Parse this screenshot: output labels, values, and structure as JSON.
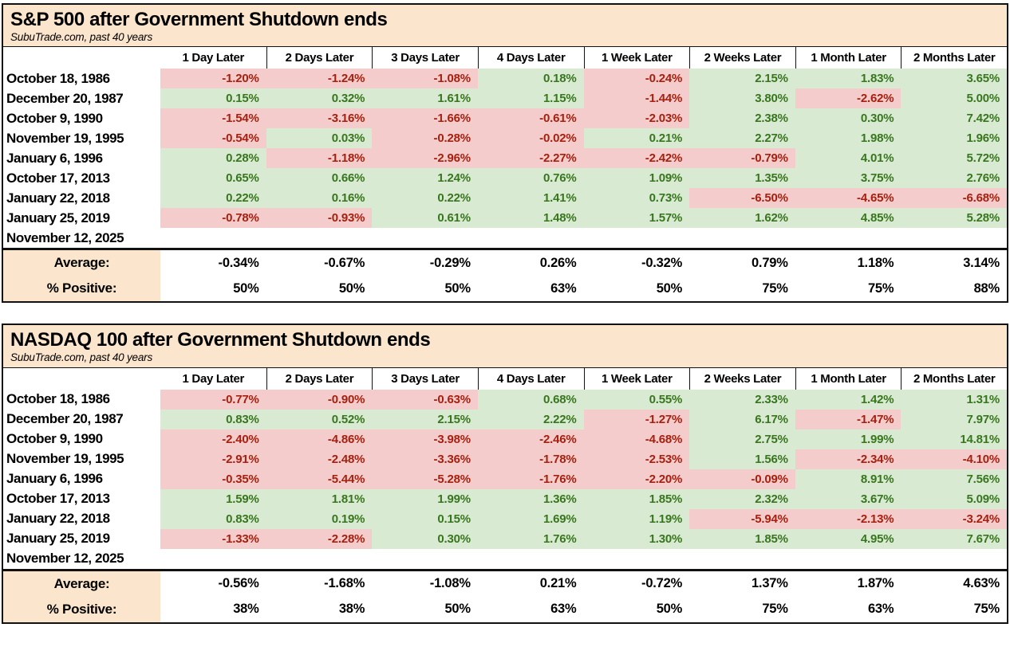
{
  "colors": {
    "positive_bg": "#d9ead3",
    "negative_bg": "#f4cccc",
    "positive_text": "#38761d",
    "negative_text": "#a6200f",
    "title_band_bg": "#fce5cd",
    "border": "#111111"
  },
  "chart_data": [
    {
      "type": "table",
      "title": "S&P 500 after Government Shutdown ends",
      "subtitle": "SubuTrade.com, past 40 years",
      "columns": [
        "1 Day Later",
        "2 Days Later",
        "3 Days Later",
        "4 Days Later",
        "1 Week Later",
        "2 Weeks Later",
        "1 Month Later",
        "2 Months Later"
      ],
      "rows": [
        {
          "date": "October 18, 1986",
          "values": [
            "-1.20%",
            "-1.24%",
            "-1.08%",
            "0.18%",
            "-0.24%",
            "2.15%",
            "1.83%",
            "3.65%"
          ]
        },
        {
          "date": "December 20, 1987",
          "values": [
            "0.15%",
            "0.32%",
            "1.61%",
            "1.15%",
            "-1.44%",
            "3.80%",
            "-2.62%",
            "5.00%"
          ]
        },
        {
          "date": "October 9, 1990",
          "values": [
            "-1.54%",
            "-3.16%",
            "-1.66%",
            "-0.61%",
            "-2.03%",
            "2.38%",
            "0.30%",
            "7.42%"
          ]
        },
        {
          "date": "November 19, 1995",
          "values": [
            "-0.54%",
            "0.03%",
            "-0.28%",
            "-0.02%",
            "0.21%",
            "2.27%",
            "1.98%",
            "1.96%"
          ]
        },
        {
          "date": "January 6, 1996",
          "values": [
            "0.28%",
            "-1.18%",
            "-2.96%",
            "-2.27%",
            "-2.42%",
            "-0.79%",
            "4.01%",
            "5.72%"
          ]
        },
        {
          "date": "October 17, 2013",
          "values": [
            "0.65%",
            "0.66%",
            "1.24%",
            "0.76%",
            "1.09%",
            "1.35%",
            "3.75%",
            "2.76%"
          ]
        },
        {
          "date": "January 22, 2018",
          "values": [
            "0.22%",
            "0.16%",
            "0.22%",
            "1.41%",
            "0.73%",
            "-6.50%",
            "-4.65%",
            "-6.68%"
          ]
        },
        {
          "date": "January 25, 2019",
          "values": [
            "-0.78%",
            "-0.93%",
            "0.61%",
            "1.48%",
            "1.57%",
            "1.62%",
            "4.85%",
            "5.28%"
          ]
        },
        {
          "date": "November 12, 2025",
          "values": [
            "",
            "",
            "",
            "",
            "",
            "",
            "",
            ""
          ]
        }
      ],
      "summary_rows": [
        {
          "label": "Average:",
          "values": [
            "-0.34%",
            "-0.67%",
            "-0.29%",
            "0.26%",
            "-0.32%",
            "0.79%",
            "1.18%",
            "3.14%"
          ]
        },
        {
          "label": "% Positive:",
          "values": [
            "50%",
            "50%",
            "50%",
            "63%",
            "50%",
            "75%",
            "75%",
            "88%"
          ]
        }
      ]
    },
    {
      "type": "table",
      "title": "NASDAQ 100 after Government Shutdown ends",
      "subtitle": "SubuTrade.com, past 40 years",
      "columns": [
        "1 Day Later",
        "2 Days Later",
        "3 Days Later",
        "4 Days Later",
        "1 Week Later",
        "2 Weeks Later",
        "1 Month Later",
        "2 Months Later"
      ],
      "rows": [
        {
          "date": "October 18, 1986",
          "values": [
            "-0.77%",
            "-0.90%",
            "-0.63%",
            "0.68%",
            "0.55%",
            "2.33%",
            "1.42%",
            "1.31%"
          ]
        },
        {
          "date": "December 20, 1987",
          "values": [
            "0.83%",
            "0.52%",
            "2.15%",
            "2.22%",
            "-1.27%",
            "6.17%",
            "-1.47%",
            "7.97%"
          ]
        },
        {
          "date": "October 9, 1990",
          "values": [
            "-2.40%",
            "-4.86%",
            "-3.98%",
            "-2.46%",
            "-4.68%",
            "2.75%",
            "1.99%",
            "14.81%"
          ]
        },
        {
          "date": "November 19, 1995",
          "values": [
            "-2.91%",
            "-2.48%",
            "-3.36%",
            "-1.78%",
            "-2.53%",
            "1.56%",
            "-2.34%",
            "-4.10%"
          ]
        },
        {
          "date": "January 6, 1996",
          "values": [
            "-0.35%",
            "-5.44%",
            "-5.28%",
            "-1.76%",
            "-2.20%",
            "-0.09%",
            "8.91%",
            "7.56%"
          ]
        },
        {
          "date": "October 17, 2013",
          "values": [
            "1.59%",
            "1.81%",
            "1.99%",
            "1.36%",
            "1.85%",
            "2.32%",
            "3.67%",
            "5.09%"
          ]
        },
        {
          "date": "January 22, 2018",
          "values": [
            "0.83%",
            "0.19%",
            "0.15%",
            "1.69%",
            "1.19%",
            "-5.94%",
            "-2.13%",
            "-3.24%"
          ]
        },
        {
          "date": "January 25, 2019",
          "values": [
            "-1.33%",
            "-2.28%",
            "0.30%",
            "1.76%",
            "1.30%",
            "1.85%",
            "4.95%",
            "7.67%"
          ]
        },
        {
          "date": "November 12, 2025",
          "values": [
            "",
            "",
            "",
            "",
            "",
            "",
            "",
            ""
          ]
        }
      ],
      "summary_rows": [
        {
          "label": "Average:",
          "values": [
            "-0.56%",
            "-1.68%",
            "-1.08%",
            "0.21%",
            "-0.72%",
            "1.37%",
            "1.87%",
            "4.63%"
          ]
        },
        {
          "label": "% Positive:",
          "values": [
            "38%",
            "38%",
            "50%",
            "63%",
            "50%",
            "75%",
            "63%",
            "75%"
          ]
        }
      ]
    }
  ]
}
